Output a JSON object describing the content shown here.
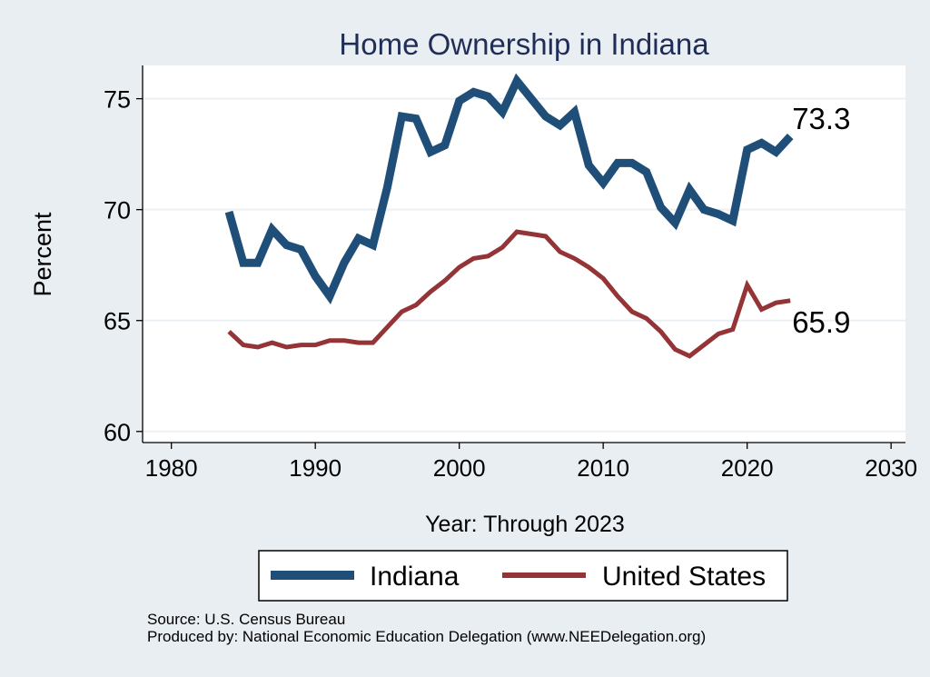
{
  "chart_data": {
    "type": "line",
    "title": "Home Ownership in Indiana",
    "xlabel": "Year: Through 2023",
    "ylabel": "Percent",
    "xlim": [
      1978,
      2031
    ],
    "ylim": [
      59.5,
      76.5
    ],
    "xticks": [
      1980,
      1990,
      2000,
      2010,
      2020,
      2030
    ],
    "yticks": [
      60,
      65,
      70,
      75
    ],
    "grid": true,
    "legend_position": "bottom",
    "colors": {
      "Indiana": "#1f4e79",
      "United States": "#943437",
      "title": "#1f2d57"
    },
    "x": [
      1984,
      1985,
      1986,
      1987,
      1988,
      1989,
      1990,
      1991,
      1992,
      1993,
      1994,
      1995,
      1996,
      1997,
      1998,
      1999,
      2000,
      2001,
      2002,
      2003,
      2004,
      2005,
      2006,
      2007,
      2008,
      2009,
      2010,
      2011,
      2012,
      2013,
      2014,
      2015,
      2016,
      2017,
      2018,
      2019,
      2020,
      2021,
      2022,
      2023
    ],
    "series": [
      {
        "name": "Indiana",
        "values": [
          69.9,
          67.6,
          67.6,
          69.1,
          68.4,
          68.2,
          67.0,
          66.1,
          67.6,
          68.7,
          68.4,
          71.0,
          74.2,
          74.1,
          72.6,
          72.9,
          74.9,
          75.3,
          75.1,
          74.4,
          75.8,
          75.0,
          74.2,
          73.8,
          74.4,
          72.0,
          71.2,
          72.1,
          72.1,
          71.7,
          70.1,
          69.4,
          70.9,
          70.0,
          69.8,
          69.5,
          72.7,
          73.0,
          72.6,
          73.3
        ]
      },
      {
        "name": "United States",
        "values": [
          64.5,
          63.9,
          63.8,
          64.0,
          63.8,
          63.9,
          63.9,
          64.1,
          64.1,
          64.0,
          64.0,
          64.7,
          65.4,
          65.7,
          66.3,
          66.8,
          67.4,
          67.8,
          67.9,
          68.3,
          69.0,
          68.9,
          68.8,
          68.1,
          67.8,
          67.4,
          66.9,
          66.1,
          65.4,
          65.1,
          64.5,
          63.7,
          63.4,
          63.9,
          64.4,
          64.6,
          66.6,
          65.5,
          65.8,
          65.9
        ]
      }
    ],
    "annotations": [
      "73.3",
      "65.9"
    ]
  },
  "footer": {
    "source": "Source: U.S. Census Bureau",
    "produced_by": "Produced by: National Economic Education Delegation (www.NEEDelegation.org)"
  }
}
